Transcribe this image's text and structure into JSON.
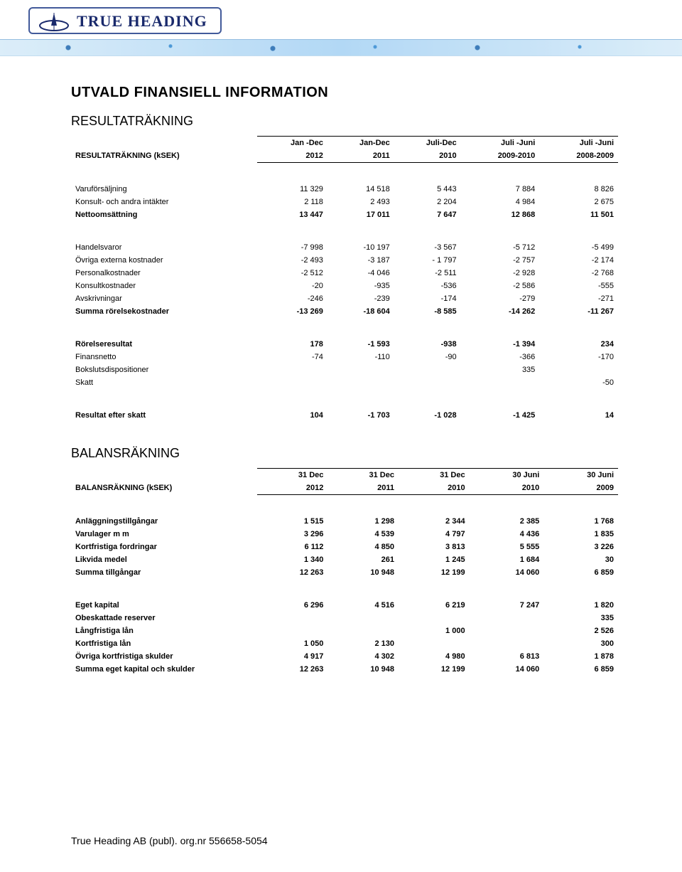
{
  "logo_text": "TRUE HEADING",
  "page_title": "UTVALD FINANSIELL INFORMATION",
  "section1": {
    "heading": "RESULTATRÄKNING",
    "row_label": "RESULTATRÄKNING (kSEK)",
    "periods": [
      "Jan -Dec",
      "Jan-Dec",
      "Juli-Dec",
      "Juli -Juni",
      "Juli -Juni"
    ],
    "years": [
      "2012",
      "2011",
      "2010",
      "2009-2010",
      "2008-2009"
    ],
    "rows": [
      {
        "label": "Varuförsäljning",
        "v": [
          "11 329",
          "14 518",
          "5 443",
          "7 884",
          "8 826"
        ],
        "bold": false,
        "gap_before": true
      },
      {
        "label": "Konsult- och andra intäkter",
        "v": [
          "2 118",
          "2 493",
          "2 204",
          "4 984",
          "2 675"
        ],
        "bold": false
      },
      {
        "label": "Nettoomsättning",
        "v": [
          "13 447",
          "17 011",
          "7 647",
          "12 868",
          "11 501"
        ],
        "bold": true
      },
      {
        "label": "Handelsvaror",
        "v": [
          "-7 998",
          "-10 197",
          "-3 567",
          "-5 712",
          "-5 499"
        ],
        "bold": false,
        "gap_before": true
      },
      {
        "label": "Övriga externa kostnader",
        "v": [
          "-2 493",
          "-3 187",
          "- 1 797",
          "-2 757",
          "-2 174"
        ],
        "bold": false
      },
      {
        "label": "Personalkostnader",
        "v": [
          "-2 512",
          "-4 046",
          "-2 511",
          "-2 928",
          "-2 768"
        ],
        "bold": false
      },
      {
        "label": "Konsultkostnader",
        "v": [
          "-20",
          "-935",
          "-536",
          "-2 586",
          "-555"
        ],
        "bold": false
      },
      {
        "label": "Avskrivningar",
        "v": [
          "-246",
          "-239",
          "-174",
          "-279",
          "-271"
        ],
        "bold": false
      },
      {
        "label": "Summa rörelsekostnader",
        "v": [
          "-13 269",
          "-18 604",
          "-8 585",
          "-14 262",
          "-11 267"
        ],
        "bold": true
      },
      {
        "label": "Rörelseresultat",
        "v": [
          "178",
          "-1 593",
          "-938",
          "-1 394",
          "234"
        ],
        "bold": true,
        "gap_before": true
      },
      {
        "label": "Finansnetto",
        "v": [
          "-74",
          "-110",
          "-90",
          "-366",
          "-170"
        ],
        "bold": false
      },
      {
        "label": "Bokslutsdispositioner",
        "v": [
          "",
          "",
          "",
          "335",
          ""
        ],
        "bold": false
      },
      {
        "label": "Skatt",
        "v": [
          "",
          "",
          "",
          "",
          "-50"
        ],
        "bold": false
      },
      {
        "label": "Resultat efter skatt",
        "v": [
          "104",
          "-1 703",
          "-1 028",
          "-1 425",
          "14"
        ],
        "bold": true,
        "gap_before": true
      }
    ]
  },
  "section2": {
    "heading": "BALANSRÄKNING",
    "row_label": "BALANSRÄKNING (kSEK)",
    "periods": [
      "31 Dec",
      "31 Dec",
      "31 Dec",
      "30 Juni",
      "30 Juni"
    ],
    "years": [
      "2012",
      "2011",
      "2010",
      "2010",
      "2009"
    ],
    "rows": [
      {
        "label": "Anläggningstillgångar",
        "v": [
          "1 515",
          "1 298",
          "2 344",
          "2 385",
          "1 768"
        ],
        "bold": true,
        "gap_before": true
      },
      {
        "label": "Varulager m m",
        "v": [
          "3 296",
          "4 539",
          "4 797",
          "4 436",
          "1 835"
        ],
        "bold": true
      },
      {
        "label": "Kortfristiga fordringar",
        "v": [
          "6 112",
          "4 850",
          "3 813",
          "5 555",
          "3 226"
        ],
        "bold": true
      },
      {
        "label": "Likvida medel",
        "v": [
          "1 340",
          "261",
          "1 245",
          "1 684",
          "30"
        ],
        "bold": true
      },
      {
        "label": "Summa tillgångar",
        "v": [
          "12 263",
          "10 948",
          "12 199",
          "14 060",
          "6 859"
        ],
        "bold": true
      },
      {
        "label": "Eget kapital",
        "v": [
          "6 296",
          "4 516",
          "6 219",
          "7 247",
          "1 820"
        ],
        "bold": true,
        "gap_before": true
      },
      {
        "label": "Obeskattade reserver",
        "v": [
          "",
          "",
          "",
          "",
          "335"
        ],
        "bold": true
      },
      {
        "label": "Långfristiga lån",
        "v": [
          "",
          "",
          "1 000",
          "",
          "2 526"
        ],
        "bold": true
      },
      {
        "label": "Kortfristiga lån",
        "v": [
          "1 050",
          "2 130",
          "",
          "",
          "300"
        ],
        "bold": true
      },
      {
        "label": "Övriga kortfristiga skulder",
        "v": [
          "4 917",
          "4 302",
          "4 980",
          "6 813",
          "1 878"
        ],
        "bold": true
      },
      {
        "label": "Summa eget kapital och skulder",
        "v": [
          "12 263",
          "10 948",
          "12 199",
          "14 060",
          "6 859"
        ],
        "bold": true
      }
    ]
  },
  "footer": "True Heading AB (publ). org.nr 556658-5054"
}
